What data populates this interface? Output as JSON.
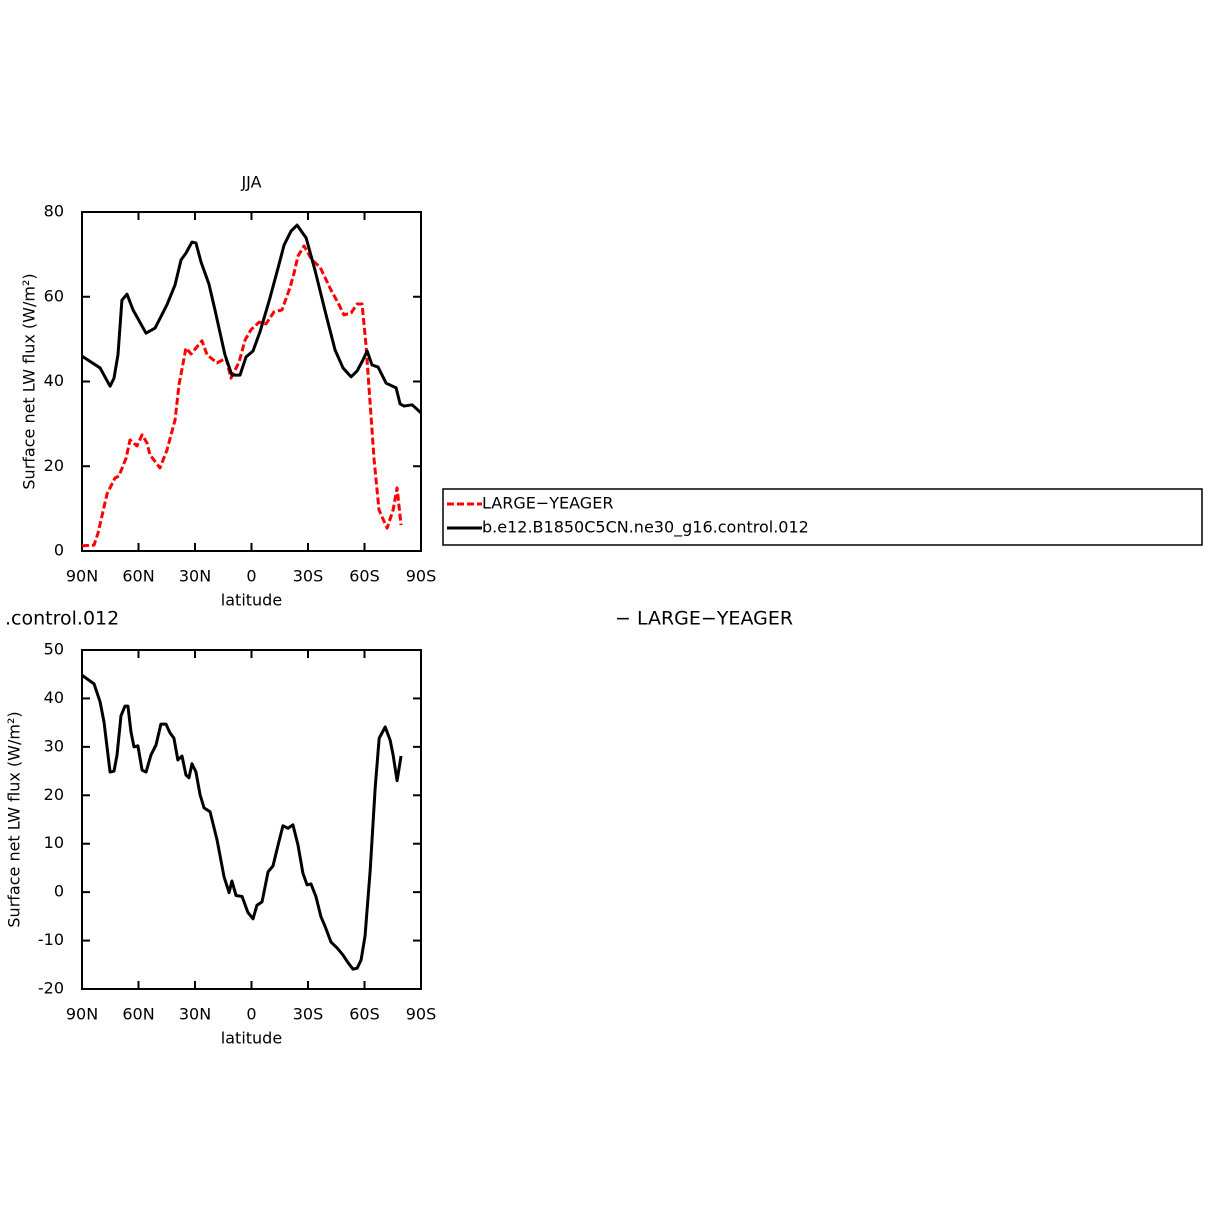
{
  "chart_data": [
    {
      "type": "line",
      "title": "JJA",
      "xlabel": "latitude",
      "ylabel": "Surface net LW flux (W/m²)",
      "xlim": [
        90,
        -90
      ],
      "xticks": [
        {
          "value": 90,
          "label": "90N"
        },
        {
          "value": 60,
          "label": "60N"
        },
        {
          "value": 30,
          "label": "30N"
        },
        0,
        {
          "value": -30,
          "label": "30S"
        },
        {
          "value": -60,
          "label": "60S"
        },
        {
          "value": -90,
          "label": "90S"
        }
      ],
      "ylim": [
        0,
        80
      ],
      "yticks": [
        0,
        20,
        40,
        60,
        80
      ],
      "legend": "right",
      "series": [
        {
          "name": "LARGE−YEAGER",
          "color": "#ff0000",
          "dash": "dashed",
          "x": [
            90,
            83.6,
            81.5,
            76.7,
            72.5,
            70.4,
            66.6,
            64.5,
            60.8,
            58.1,
            55.5,
            53.9,
            48.6,
            44.9,
            40.6,
            38.5,
            34.8,
            32.1,
            26.3,
            23.6,
            18.3,
            13.5,
            10.9,
            6.6,
            3.4,
            0.3,
            -4,
            -7.7,
            -11.9,
            -16.2,
            -20.4,
            -22.6,
            -24.7,
            -27.9,
            -32.1,
            -36.4,
            -42.2,
            -46.5,
            -49.1,
            -52.9,
            -56.1,
            -58.7,
            -60.8,
            -65.1,
            -67.7,
            -72,
            -75.2,
            -77.3,
            -79.4
          ],
          "values": [
            1.2,
            1.4,
            4.2,
            13.5,
            17.2,
            17.7,
            21.9,
            26.2,
            24.8,
            27.4,
            25.5,
            22.7,
            19.6,
            23.8,
            30.9,
            39.2,
            47.9,
            46.5,
            49.6,
            46.3,
            44.4,
            45.5,
            40.8,
            44.6,
            49.8,
            52.2,
            54.0,
            53.6,
            56.4,
            56.9,
            62.1,
            65.6,
            69.6,
            72.0,
            68.7,
            67.0,
            61.6,
            58.1,
            55.7,
            56.2,
            58.3,
            58.3,
            48.6,
            21.5,
            9.7,
            5.4,
            9.7,
            14.9,
            6.1
          ]
        },
        {
          "name": "b.e12.B1850C5CN.ne30_g16.control.012",
          "color": "#000000",
          "dash": "solid",
          "x": [
            90,
            80.4,
            75.1,
            73,
            70.9,
            68.8,
            66.1,
            62.9,
            56,
            51.2,
            44.9,
            40.6,
            37.4,
            34.8,
            31.6,
            29.5,
            26.8,
            22.6,
            19.4,
            14.1,
            10.4,
            6.1,
            2.9,
            -0.8,
            -4.5,
            -9.8,
            -14.1,
            -17.3,
            -21,
            -24.2,
            -29,
            -33.7,
            -39.6,
            -44.4,
            -48.6,
            -52.9,
            -56.1,
            -59.2,
            -61.4,
            -64,
            -67.2,
            -71.5,
            -76.8,
            -78.9,
            -81,
            -85.3,
            -90
          ],
          "values": [
            46.0,
            43.2,
            38.9,
            40.8,
            46.3,
            59.2,
            60.6,
            56.9,
            51.4,
            52.6,
            58.1,
            62.8,
            68.7,
            70.3,
            72.9,
            72.7,
            68.2,
            63.0,
            56.9,
            46.3,
            41.5,
            41.5,
            45.8,
            47.2,
            51.7,
            59.7,
            66.8,
            72.2,
            75.5,
            76.9,
            73.9,
            66.3,
            55.7,
            47.4,
            43.2,
            41.1,
            42.5,
            45.1,
            47.2,
            43.9,
            43.4,
            39.6,
            38.5,
            34.7,
            34.2,
            34.5,
            32.6
          ]
        }
      ]
    },
    {
      "type": "line",
      "title_left": ".control.012",
      "title_right": "− LARGE−YEAGER",
      "xlabel": "latitude",
      "ylabel": "Surface net LW flux (W/m²)",
      "xlim": [
        90,
        -90
      ],
      "xticks": [
        {
          "value": 90,
          "label": "90N"
        },
        {
          "value": 60,
          "label": "60N"
        },
        {
          "value": 30,
          "label": "30N"
        },
        0,
        {
          "value": -30,
          "label": "30S"
        },
        {
          "value": -60,
          "label": "60S"
        },
        {
          "value": -90,
          "label": "90S"
        }
      ],
      "ylim": [
        -20,
        50
      ],
      "yticks": [
        -20,
        -10,
        0,
        10,
        20,
        30,
        40,
        50
      ],
      "series": [
        {
          "color": "#000000",
          "dash": "solid",
          "x": [
            90,
            83.6,
            80.4,
            78.3,
            75.1,
            73,
            71.4,
            69.3,
            67.2,
            65.6,
            64,
            62.4,
            60.3,
            58.1,
            56,
            53.4,
            50.7,
            48.1,
            45.4,
            43.3,
            41.2,
            39.1,
            36.9,
            34.8,
            33.2,
            31.6,
            29.5,
            27.3,
            25.2,
            22,
            18.3,
            14.6,
            11.9,
            10.4,
            8.2,
            5,
            1.9,
            -0.8,
            -2.9,
            -5.6,
            -8.8,
            -11.4,
            -14.1,
            -16.7,
            -19.4,
            -22,
            -24.7,
            -27.3,
            -29.5,
            -31.6,
            -34.2,
            -36.9,
            -39,
            -42.2,
            -45.4,
            -48.6,
            -51.3,
            -53.9,
            -56.1,
            -58.2,
            -60.3,
            -63,
            -65.7,
            -67.8,
            -71,
            -73.6,
            -75.2,
            -77.3,
            -79.4
          ],
          "values": [
            44.8,
            43.0,
            39.3,
            35.1,
            24.8,
            25.0,
            28.3,
            36.4,
            38.4,
            38.4,
            33.1,
            30.0,
            30.2,
            25.2,
            24.8,
            28.3,
            30.4,
            34.7,
            34.7,
            32.9,
            31.8,
            27.3,
            28.1,
            24.2,
            23.6,
            26.5,
            24.8,
            20.1,
            17.4,
            16.6,
            10.8,
            3.2,
            -0.1,
            2.3,
            -0.7,
            -0.9,
            -4.2,
            -5.5,
            -2.7,
            -2.0,
            4.2,
            5.4,
            9.7,
            13.7,
            13.2,
            13.9,
            9.7,
            3.9,
            1.5,
            1.7,
            -0.9,
            -5.1,
            -7.0,
            -10.3,
            -11.5,
            -13.0,
            -14.6,
            -15.9,
            -15.7,
            -14.0,
            -9.0,
            4.4,
            21.7,
            31.8,
            34.1,
            31.4,
            28.3,
            23.0,
            28.1
          ]
        }
      ]
    }
  ]
}
